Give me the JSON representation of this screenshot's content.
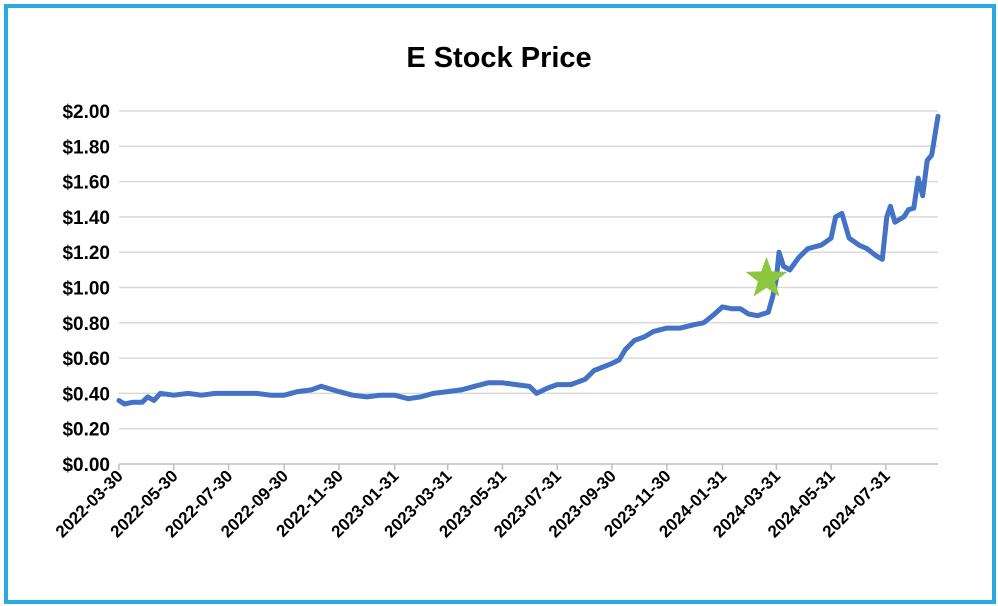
{
  "chart_data": {
    "type": "line",
    "title": "E Stock Price",
    "xlabel": "",
    "ylabel": "",
    "ylim": [
      0,
      2.0
    ],
    "y_ticks": [
      "$0.00",
      "$0.20",
      "$0.40",
      "$0.60",
      "$0.80",
      "$1.00",
      "$1.20",
      "$1.40",
      "$1.60",
      "$1.80",
      "$2.00"
    ],
    "x_ticks": [
      "2022-03-30",
      "2022-05-30",
      "2022-07-30",
      "2022-09-30",
      "2022-11-30",
      "2023-01-31",
      "2023-03-31",
      "2023-05-31",
      "2023-07-31",
      "2023-09-30",
      "2023-11-30",
      "2024-01-31",
      "2024-03-31",
      "2024-05-31",
      "2024-07-31"
    ],
    "x_range": [
      "2022-03-30",
      "2024-09-27"
    ],
    "grid": true,
    "series": [
      {
        "color": "#4472c4",
        "points": [
          [
            "2022-03-30",
            0.36
          ],
          [
            "2022-04-05",
            0.34
          ],
          [
            "2022-04-15",
            0.35
          ],
          [
            "2022-04-25",
            0.35
          ],
          [
            "2022-05-01",
            0.38
          ],
          [
            "2022-05-08",
            0.36
          ],
          [
            "2022-05-15",
            0.4
          ],
          [
            "2022-05-30",
            0.39
          ],
          [
            "2022-06-15",
            0.4
          ],
          [
            "2022-06-30",
            0.39
          ],
          [
            "2022-07-15",
            0.4
          ],
          [
            "2022-07-30",
            0.4
          ],
          [
            "2022-08-15",
            0.4
          ],
          [
            "2022-08-30",
            0.4
          ],
          [
            "2022-09-15",
            0.39
          ],
          [
            "2022-09-30",
            0.39
          ],
          [
            "2022-10-15",
            0.41
          ],
          [
            "2022-10-30",
            0.42
          ],
          [
            "2022-11-10",
            0.44
          ],
          [
            "2022-11-30",
            0.41
          ],
          [
            "2022-12-15",
            0.39
          ],
          [
            "2022-12-31",
            0.38
          ],
          [
            "2023-01-15",
            0.39
          ],
          [
            "2023-01-31",
            0.39
          ],
          [
            "2023-02-15",
            0.37
          ],
          [
            "2023-03-01",
            0.38
          ],
          [
            "2023-03-15",
            0.4
          ],
          [
            "2023-03-31",
            0.41
          ],
          [
            "2023-04-15",
            0.42
          ],
          [
            "2023-04-30",
            0.44
          ],
          [
            "2023-05-15",
            0.46
          ],
          [
            "2023-05-31",
            0.46
          ],
          [
            "2023-06-15",
            0.45
          ],
          [
            "2023-06-30",
            0.44
          ],
          [
            "2023-07-08",
            0.4
          ],
          [
            "2023-07-20",
            0.43
          ],
          [
            "2023-07-31",
            0.45
          ],
          [
            "2023-08-15",
            0.45
          ],
          [
            "2023-08-31",
            0.48
          ],
          [
            "2023-09-10",
            0.53
          ],
          [
            "2023-09-30",
            0.57
          ],
          [
            "2023-10-08",
            0.59
          ],
          [
            "2023-10-15",
            0.65
          ],
          [
            "2023-10-25",
            0.7
          ],
          [
            "2023-11-05",
            0.72
          ],
          [
            "2023-11-15",
            0.75
          ],
          [
            "2023-11-30",
            0.77
          ],
          [
            "2023-12-15",
            0.77
          ],
          [
            "2023-12-31",
            0.79
          ],
          [
            "2024-01-10",
            0.8
          ],
          [
            "2024-01-20",
            0.84
          ],
          [
            "2024-01-31",
            0.89
          ],
          [
            "2024-02-10",
            0.88
          ],
          [
            "2024-02-20",
            0.88
          ],
          [
            "2024-02-29",
            0.85
          ],
          [
            "2024-03-10",
            0.84
          ],
          [
            "2024-03-22",
            0.86
          ],
          [
            "2024-03-27",
            0.95
          ],
          [
            "2024-03-31",
            1.05
          ],
          [
            "2024-04-03",
            1.2
          ],
          [
            "2024-04-08",
            1.12
          ],
          [
            "2024-04-15",
            1.1
          ],
          [
            "2024-04-25",
            1.17
          ],
          [
            "2024-05-05",
            1.22
          ],
          [
            "2024-05-20",
            1.24
          ],
          [
            "2024-05-31",
            1.28
          ],
          [
            "2024-06-05",
            1.4
          ],
          [
            "2024-06-12",
            1.42
          ],
          [
            "2024-06-20",
            1.28
          ],
          [
            "2024-07-01",
            1.24
          ],
          [
            "2024-07-10",
            1.22
          ],
          [
            "2024-07-20",
            1.18
          ],
          [
            "2024-07-27",
            1.16
          ],
          [
            "2024-08-01",
            1.4
          ],
          [
            "2024-08-05",
            1.46
          ],
          [
            "2024-08-10",
            1.37
          ],
          [
            "2024-08-20",
            1.4
          ],
          [
            "2024-08-25",
            1.44
          ],
          [
            "2024-08-31",
            1.45
          ],
          [
            "2024-09-05",
            1.62
          ],
          [
            "2024-09-10",
            1.52
          ],
          [
            "2024-09-15",
            1.72
          ],
          [
            "2024-09-20",
            1.75
          ],
          [
            "2024-09-27",
            1.97
          ]
        ]
      }
    ],
    "annotation_marker": {
      "shape": "star",
      "color": "#8dc63f",
      "x": "2024-03-20",
      "y": 1.05
    }
  }
}
